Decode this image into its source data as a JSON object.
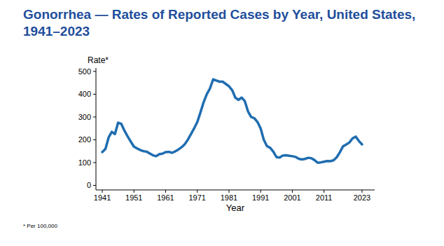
{
  "chart_data": {
    "type": "line",
    "title": "Gonorrhea — Rates of Reported Cases by Year, United States, 1941–2023",
    "y_label": "Rate*",
    "x_label": "Year",
    "note": "* Per 100,000",
    "color": "#1f6db0",
    "x": [
      1941,
      1942,
      1943,
      1944,
      1945,
      1946,
      1947,
      1948,
      1949,
      1950,
      1951,
      1952,
      1953,
      1954,
      1955,
      1956,
      1957,
      1958,
      1959,
      1960,
      1961,
      1962,
      1963,
      1964,
      1965,
      1966,
      1967,
      1968,
      1969,
      1970,
      1971,
      1972,
      1973,
      1974,
      1975,
      1976,
      1977,
      1978,
      1979,
      1980,
      1981,
      1982,
      1983,
      1984,
      1985,
      1986,
      1987,
      1988,
      1989,
      1990,
      1991,
      1992,
      1993,
      1994,
      1995,
      1996,
      1997,
      1998,
      1999,
      2000,
      2001,
      2002,
      2003,
      2004,
      2005,
      2006,
      2007,
      2008,
      2009,
      2010,
      2011,
      2012,
      2013,
      2014,
      2015,
      2016,
      2017,
      2018,
      2019,
      2020,
      2021,
      2022,
      2023
    ],
    "values": [
      146,
      160,
      210,
      235,
      225,
      275,
      270,
      240,
      215,
      192,
      170,
      162,
      155,
      150,
      148,
      140,
      132,
      128,
      137,
      139,
      146,
      147,
      143,
      149,
      157,
      167,
      180,
      200,
      225,
      250,
      278,
      320,
      365,
      400,
      425,
      465,
      460,
      455,
      455,
      445,
      435,
      418,
      385,
      375,
      385,
      370,
      325,
      300,
      295,
      278,
      250,
      200,
      172,
      165,
      148,
      124,
      122,
      131,
      132,
      130,
      128,
      125,
      117,
      114,
      116,
      121,
      119,
      111,
      99,
      101,
      104,
      107,
      106,
      110,
      123,
      145,
      171,
      179,
      188,
      206,
      214,
      195,
      180
    ],
    "xlim": [
      1939,
      2027
    ],
    "xticks": [
      1941,
      1951,
      1961,
      1971,
      1981,
      1991,
      2001,
      2011,
      2023
    ],
    "ylim": [
      -20,
      515
    ],
    "yticks": [
      0,
      100,
      200,
      300,
      400,
      500
    ],
    "grid": false
  }
}
